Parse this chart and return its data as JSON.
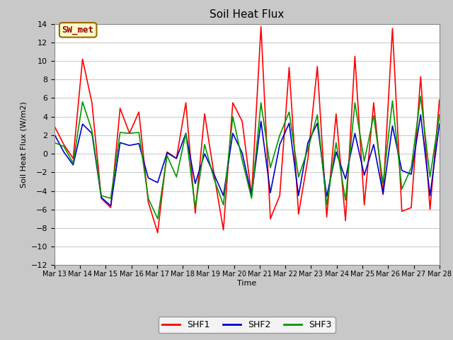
{
  "title": "Soil Heat Flux",
  "ylabel": "Soil Heat Flux (W/m2)",
  "xlabel": "Time",
  "ylim": [
    -12,
    14
  ],
  "yticks": [
    -12,
    -10,
    -8,
    -6,
    -4,
    -2,
    0,
    2,
    4,
    6,
    8,
    10,
    12,
    14
  ],
  "fig_bg_color": "#c8c8c8",
  "plot_bg_color": "#ffffff",
  "legend_label": "SW_met",
  "legend_box_facecolor": "#ffffcc",
  "legend_box_edgecolor": "#996600",
  "legend_text_color": "#990000",
  "series_colors": {
    "SHF1": "#ff0000",
    "SHF2": "#0000cc",
    "SHF3": "#009900"
  },
  "x_tick_labels": [
    "Mar 13",
    "Mar 14",
    "Mar 15",
    "Mar 16",
    "Mar 17",
    "Mar 18",
    "Mar 19",
    "Mar 20",
    "Mar 21",
    "Mar 22",
    "Mar 23",
    "Mar 24",
    "Mar 25",
    "Mar 26",
    "Mar 27",
    "Mar 28"
  ],
  "shf1": [
    3.0,
    1.0,
    -0.5,
    10.2,
    5.5,
    -4.8,
    -5.8,
    4.9,
    2.2,
    4.5,
    -5.2,
    -8.5,
    0.2,
    -0.5,
    5.5,
    -6.4,
    4.3,
    -2.2,
    -8.2,
    5.5,
    3.5,
    -4.5,
    13.7,
    -7.0,
    -4.5,
    9.3,
    -6.5,
    -0.5,
    9.4,
    -6.8,
    4.3,
    -7.2,
    10.5,
    -5.5,
    5.5,
    -4.4,
    13.5,
    -6.2,
    -5.8,
    8.3,
    -6.0,
    5.8
  ],
  "shf2": [
    2.1,
    0.2,
    -1.2,
    3.2,
    2.2,
    -4.7,
    -5.6,
    1.2,
    0.9,
    1.1,
    -2.6,
    -3.1,
    0.1,
    -0.5,
    2.2,
    -3.2,
    0.0,
    -2.2,
    -4.5,
    2.2,
    0.1,
    -4.5,
    3.5,
    -4.2,
    1.0,
    3.3,
    -4.5,
    1.2,
    3.3,
    -4.6,
    0.2,
    -2.7,
    2.2,
    -2.3,
    1.0,
    -4.3,
    3.0,
    -1.8,
    -2.2,
    4.2,
    -4.5,
    3.2
  ],
  "shf3": [
    1.2,
    0.8,
    -1.0,
    5.6,
    2.5,
    -4.5,
    -4.8,
    2.3,
    2.2,
    2.3,
    -4.8,
    -7.0,
    -0.2,
    -2.5,
    2.2,
    -5.8,
    1.0,
    -2.7,
    -5.5,
    4.0,
    -0.7,
    -4.8,
    5.5,
    -1.5,
    2.0,
    4.5,
    -2.5,
    0.5,
    4.2,
    -5.5,
    1.2,
    -5.0,
    5.5,
    -0.8,
    4.1,
    -3.2,
    5.7,
    -3.8,
    -1.5,
    6.2,
    -2.5,
    4.2
  ]
}
